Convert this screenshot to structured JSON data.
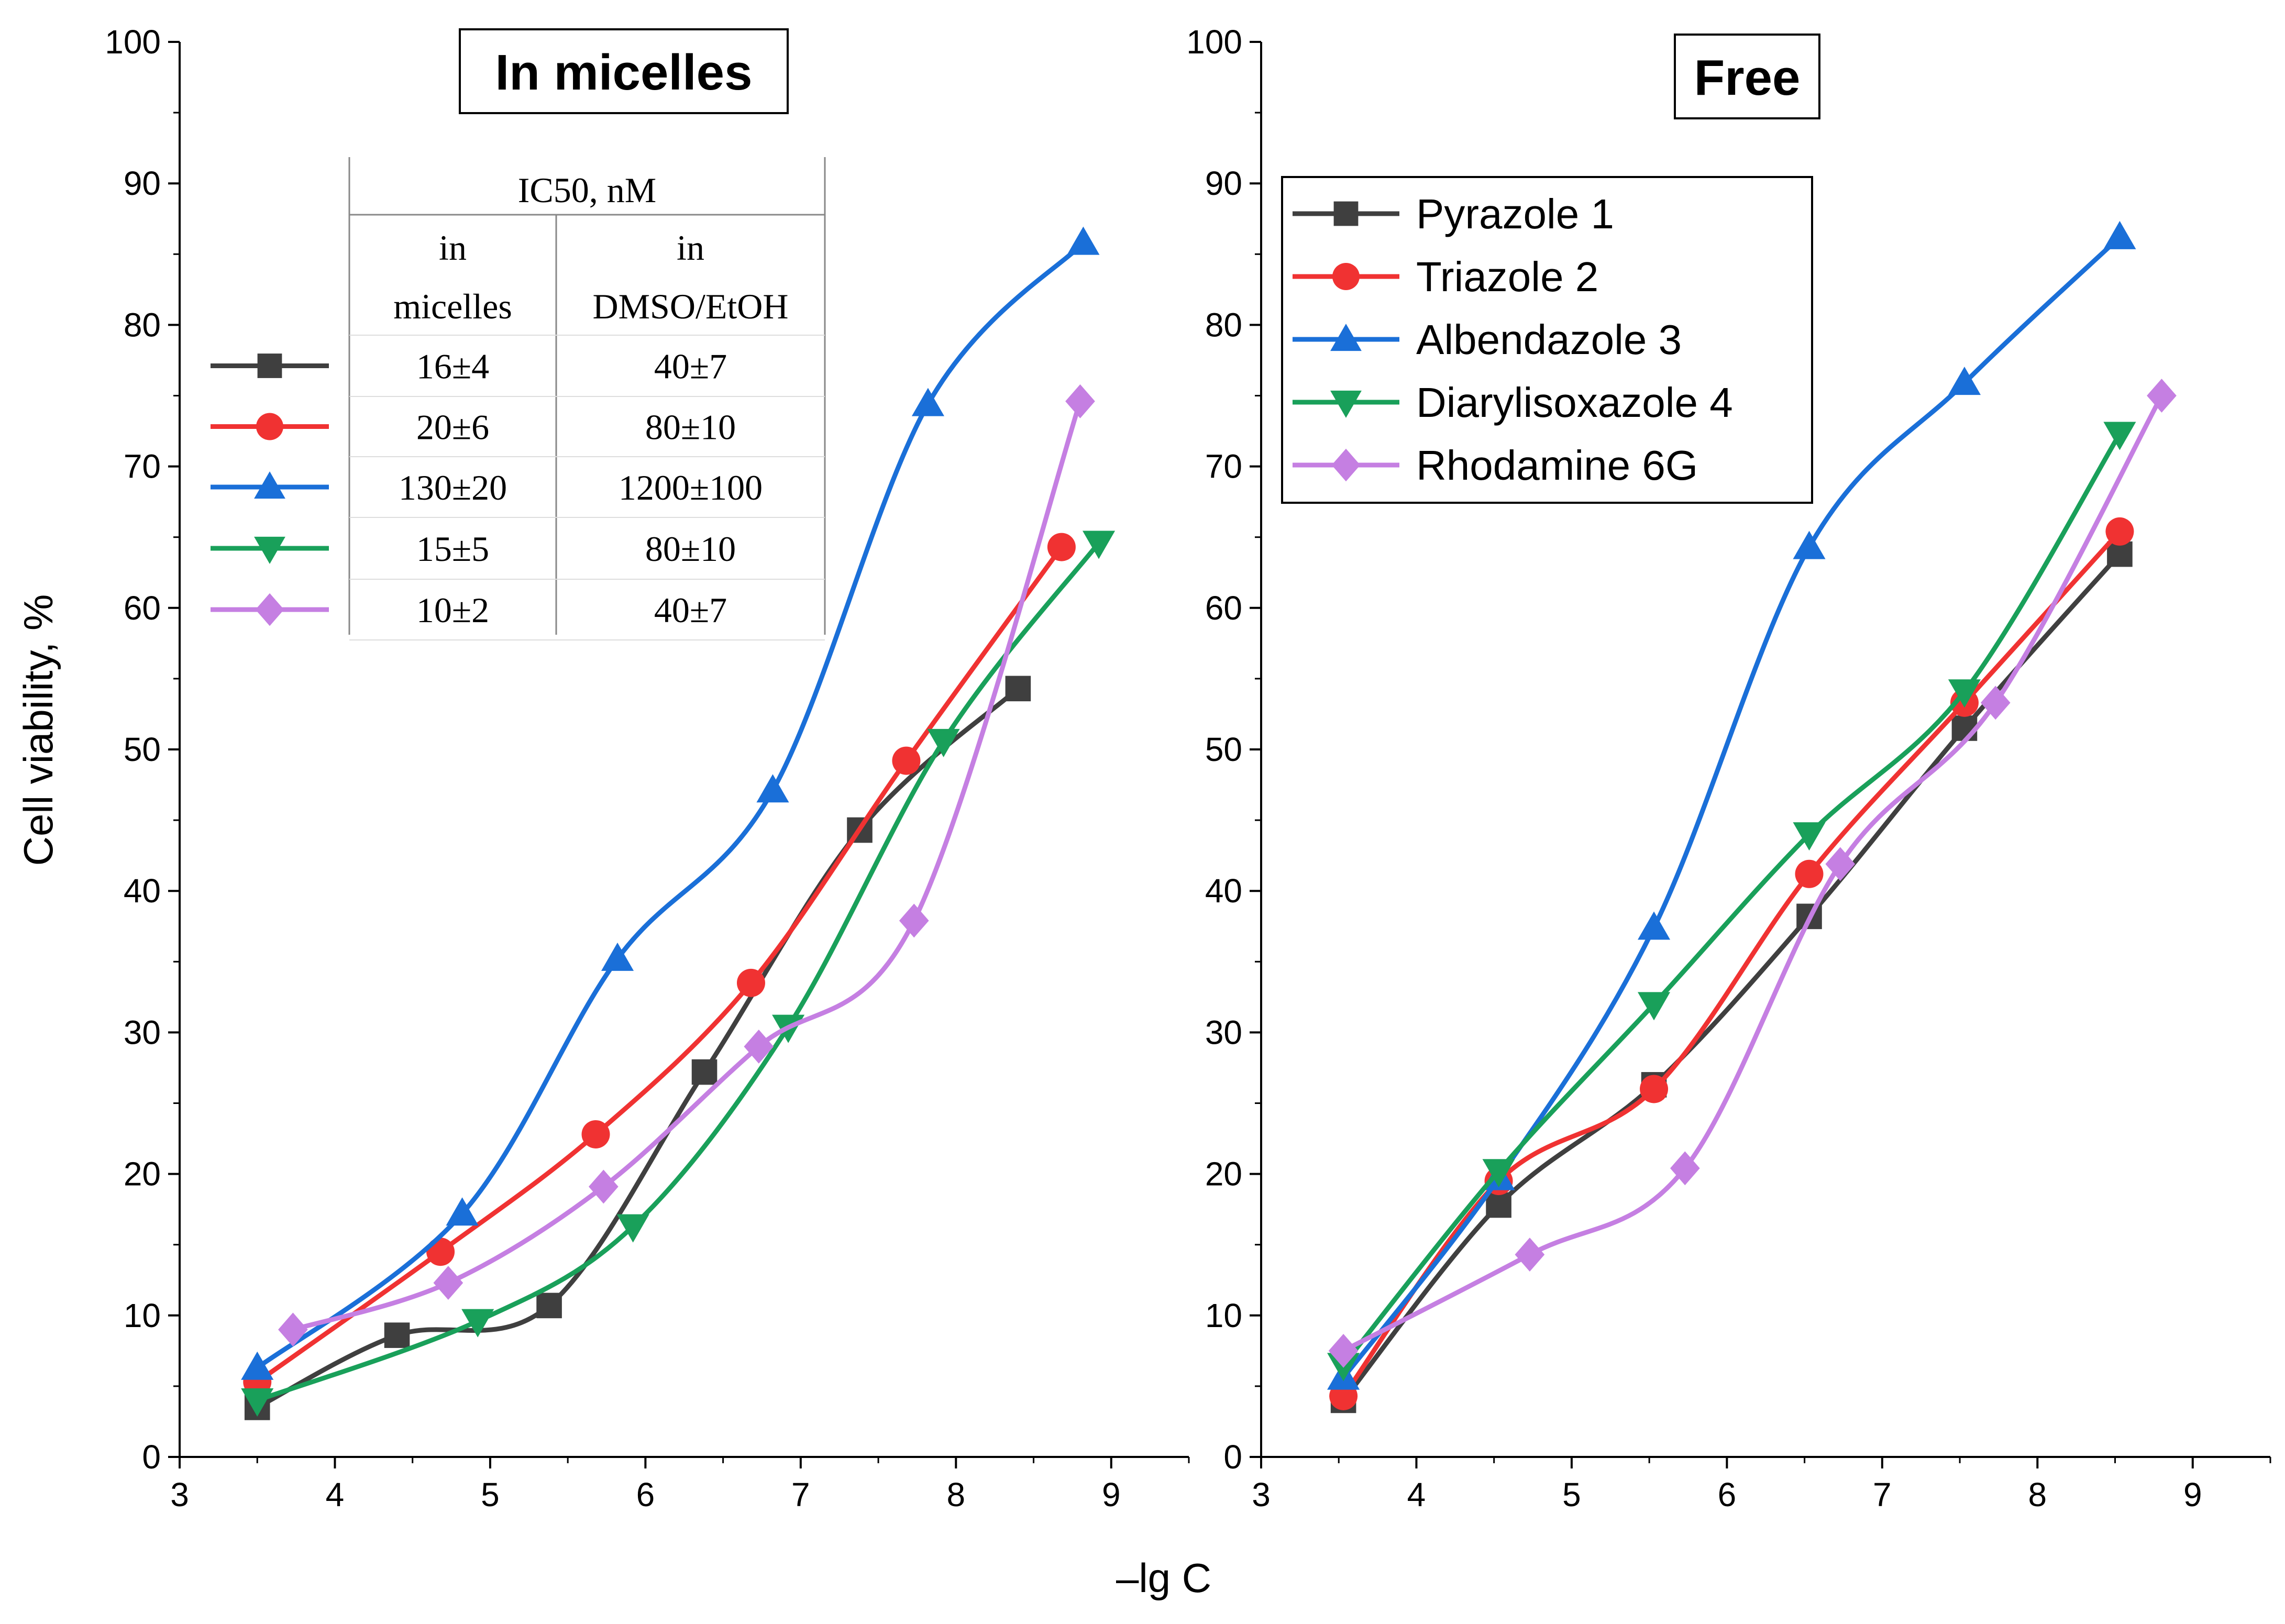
{
  "figure": {
    "xlabel": "–lg C",
    "ylabel": "Cell viability, %"
  },
  "chart_data": [
    {
      "type": "line",
      "panel_title": "In micelles",
      "xlim": [
        3,
        9.5
      ],
      "ylim": [
        0,
        100
      ],
      "xticks": [
        3,
        4,
        5,
        6,
        7,
        8,
        9
      ],
      "yticks": [
        0,
        10,
        20,
        30,
        40,
        50,
        60,
        70,
        80,
        90,
        100
      ],
      "series": [
        {
          "name": "Pyrazole 1",
          "color": "#3f3f3f",
          "marker": "square",
          "x": [
            3.5,
            4.4,
            5.38,
            6.38,
            7.38,
            8.4
          ],
          "y": [
            3.5,
            8.6,
            10.7,
            27.2,
            44.3,
            54.3
          ]
        },
        {
          "name": "Triazole 2",
          "color": "#f03232",
          "marker": "circle",
          "x": [
            3.5,
            4.68,
            5.68,
            6.68,
            7.68,
            8.68
          ],
          "y": [
            5.3,
            14.5,
            22.8,
            33.5,
            49.2,
            64.3
          ]
        },
        {
          "name": "Albendazole 3",
          "color": "#1a6fd8",
          "marker": "triangle-up",
          "x": [
            3.5,
            4.82,
            5.82,
            6.82,
            7.82,
            8.82
          ],
          "y": [
            6.3,
            17.2,
            35.2,
            47.1,
            74.4,
            85.8
          ]
        },
        {
          "name": "Diarylisoxazole 4",
          "color": "#19a05a",
          "marker": "triangle-down",
          "x": [
            3.5,
            4.92,
            5.92,
            6.92,
            7.92,
            8.92
          ],
          "y": [
            4.0,
            9.6,
            16.3,
            30.4,
            50.6,
            64.6
          ]
        },
        {
          "name": "Rhodamine 6G",
          "color": "#c57fe2",
          "marker": "diamond",
          "x": [
            3.73,
            4.73,
            5.73,
            6.73,
            7.73,
            8.8
          ],
          "y": [
            9.0,
            12.3,
            19.1,
            29.0,
            37.9,
            74.6
          ]
        }
      ],
      "ic50_table": {
        "header": "IC50, nM",
        "col1_header": [
          "in",
          "micelles"
        ],
        "col2_header": [
          "in",
          "DMSO/EtOH"
        ],
        "rows": [
          [
            "16±4",
            "40±7"
          ],
          [
            "20±6",
            "80±10"
          ],
          [
            "130±20",
            "1200±100"
          ],
          [
            "15±5",
            "80±10"
          ],
          [
            "10±2",
            "40±7"
          ]
        ]
      }
    },
    {
      "type": "line",
      "panel_title": "Free",
      "xlim": [
        3,
        9.5
      ],
      "ylim": [
        0,
        100
      ],
      "xticks": [
        3,
        4,
        5,
        6,
        7,
        8,
        9
      ],
      "yticks": [
        0,
        10,
        20,
        30,
        40,
        50,
        60,
        70,
        80,
        90,
        100
      ],
      "legend_position": "top-left",
      "series": [
        {
          "name": "Pyrazole 1",
          "color": "#3f3f3f",
          "marker": "square",
          "x": [
            3.53,
            4.53,
            5.53,
            6.53,
            7.53,
            8.53
          ],
          "y": [
            4.0,
            17.8,
            26.3,
            38.2,
            51.5,
            63.8
          ]
        },
        {
          "name": "Triazole 2",
          "color": "#f03232",
          "marker": "circle",
          "x": [
            3.53,
            4.53,
            5.53,
            6.53,
            7.53,
            8.53
          ],
          "y": [
            4.3,
            19.5,
            26.0,
            41.2,
            53.3,
            65.4
          ]
        },
        {
          "name": "Albendazole 3",
          "color": "#1a6fd8",
          "marker": "triangle-up",
          "x": [
            3.53,
            4.53,
            5.53,
            6.53,
            7.53,
            8.53
          ],
          "y": [
            5.6,
            19.7,
            37.4,
            64.3,
            75.9,
            86.2
          ]
        },
        {
          "name": "Diarylisoxazole 4",
          "color": "#19a05a",
          "marker": "triangle-down",
          "x": [
            3.53,
            4.53,
            5.53,
            6.53,
            7.53,
            8.53
          ],
          "y": [
            6.5,
            20.2,
            32.0,
            44.0,
            54.1,
            72.3
          ]
        },
        {
          "name": "Rhodamine 6G",
          "color": "#c57fe2",
          "marker": "diamond",
          "x": [
            3.53,
            4.73,
            5.73,
            6.73,
            7.73,
            8.8
          ],
          "y": [
            7.5,
            14.3,
            20.4,
            41.9,
            53.3,
            75.0
          ]
        }
      ]
    }
  ]
}
